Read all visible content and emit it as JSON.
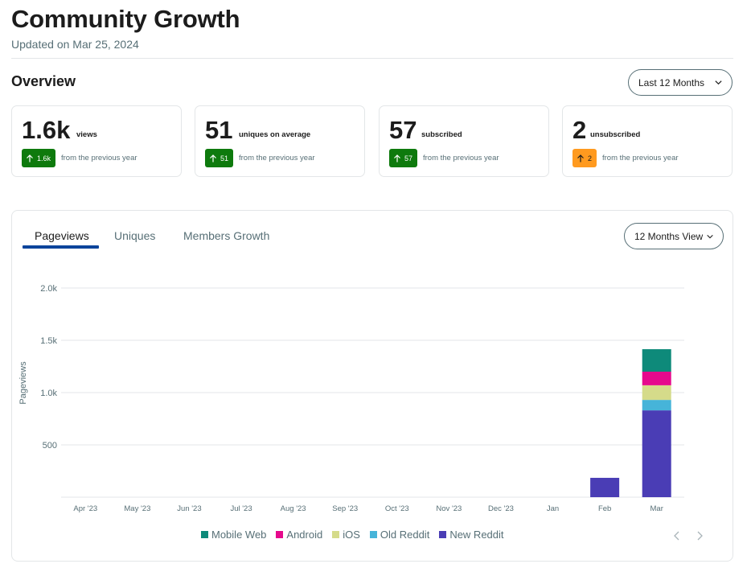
{
  "header": {
    "title": "Community Growth",
    "updated": "Updated on Mar 25, 2024"
  },
  "overview": {
    "title": "Overview",
    "range_label": "Last 12 Months"
  },
  "stats": [
    {
      "value": "1.6k",
      "label": "views",
      "badge": "1.6k",
      "badge_status": "up",
      "comparison": "from the previous year"
    },
    {
      "value": "51",
      "label": "uniques on average",
      "badge": "51",
      "badge_status": "up",
      "comparison": "from the previous year"
    },
    {
      "value": "57",
      "label": "subscribed",
      "badge": "57",
      "badge_status": "up",
      "comparison": "from the previous year"
    },
    {
      "value": "2",
      "label": "unsubscribed",
      "badge": "2",
      "badge_status": "warn",
      "comparison": "from the previous year"
    }
  ],
  "tabs": [
    {
      "label": "Pageviews",
      "active": true
    },
    {
      "label": "Uniques",
      "active": false
    },
    {
      "label": "Members Growth",
      "active": false
    }
  ],
  "view_label": "12 Months View",
  "colors": {
    "accent": "#0a449b",
    "up": "#0e7a0d",
    "warn": "#ff9a1f",
    "new_reddit": "#4a3db5",
    "old_reddit": "#46b4d9",
    "ios": "#d5db8a",
    "android": "#e6098c",
    "mobile_web": "#0e8a7a"
  },
  "chart_data": {
    "type": "bar",
    "stacked": true,
    "title": "",
    "xlabel": "",
    "ylabel": "Pageviews",
    "ylim": [
      0,
      2000
    ],
    "yticks": [
      500,
      1000,
      1500,
      2000
    ],
    "ytick_labels": [
      "500",
      "1.0k",
      "1.5k",
      "2.0k"
    ],
    "categories": [
      "Apr '23",
      "May '23",
      "Jun '23",
      "Jul '23",
      "Aug '23",
      "Sep '23",
      "Oct '23",
      "Nov '23",
      "Dec '23",
      "Jan",
      "Feb",
      "Mar"
    ],
    "series": [
      {
        "name": "New Reddit",
        "color": "#4a3db5",
        "values": [
          0,
          0,
          0,
          0,
          0,
          0,
          0,
          0,
          0,
          0,
          185,
          830
        ]
      },
      {
        "name": "Old Reddit",
        "color": "#46b4d9",
        "values": [
          0,
          0,
          0,
          0,
          0,
          0,
          0,
          0,
          0,
          0,
          0,
          100
        ]
      },
      {
        "name": "iOS",
        "color": "#d5db8a",
        "values": [
          0,
          0,
          0,
          0,
          0,
          0,
          0,
          0,
          0,
          0,
          0,
          140
        ]
      },
      {
        "name": "Android",
        "color": "#e6098c",
        "values": [
          0,
          0,
          0,
          0,
          0,
          0,
          0,
          0,
          0,
          0,
          0,
          130
        ]
      },
      {
        "name": "Mobile Web",
        "color": "#0e8a7a",
        "values": [
          0,
          0,
          0,
          0,
          0,
          0,
          0,
          0,
          0,
          0,
          0,
          215
        ]
      }
    ],
    "legend_order": [
      "Mobile Web",
      "Android",
      "iOS",
      "Old Reddit",
      "New Reddit"
    ],
    "grid": true,
    "legend_position": "bottom"
  }
}
